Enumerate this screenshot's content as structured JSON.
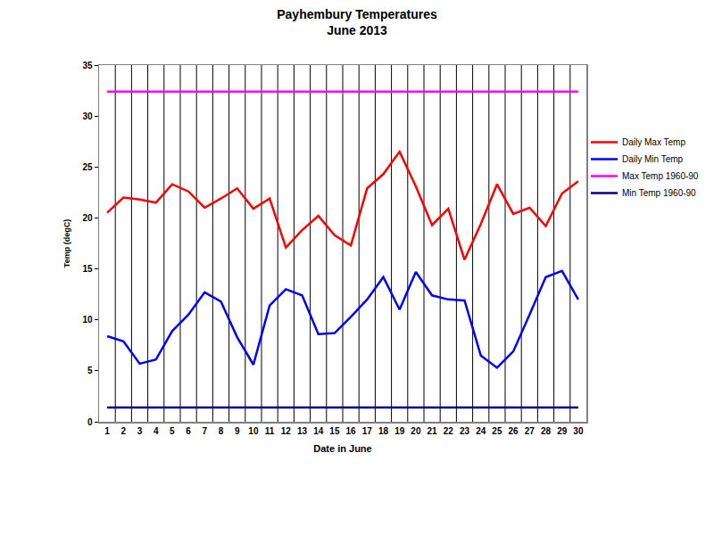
{
  "chart_data": {
    "type": "line",
    "title": "Payhembury Temperatures",
    "subtitle": "June 2013",
    "x_label": "Date in June",
    "y_label": "Temp (degC)",
    "categories": [
      "1",
      "2",
      "3",
      "4",
      "5",
      "6",
      "7",
      "8",
      "9",
      "10",
      "11",
      "12",
      "13",
      "14",
      "15",
      "16",
      "17",
      "18",
      "19",
      "20",
      "21",
      "22",
      "23",
      "24",
      "25",
      "26",
      "27",
      "28",
      "29",
      "30"
    ],
    "series": [
      {
        "name": "Daily Max Temp",
        "color": "#ff0000",
        "values": [
          20.5,
          22.0,
          21.8,
          21.5,
          23.3,
          22.6,
          21.0,
          21.9,
          22.9,
          20.9,
          21.9,
          17.1,
          18.8,
          20.2,
          18.3,
          17.3,
          22.9,
          24.3,
          26.5,
          23.1,
          19.3,
          20.9,
          15.9,
          19.4,
          23.3,
          20.4,
          21.0,
          19.2,
          22.4,
          23.6
        ]
      },
      {
        "name": "Daily Min Temp",
        "color": "#0000ff",
        "values": [
          8.4,
          7.9,
          5.7,
          6.1,
          8.9,
          10.5,
          12.7,
          11.8,
          8.3,
          5.6,
          11.4,
          13.0,
          12.4,
          8.6,
          8.7,
          10.3,
          12.0,
          14.2,
          11.0,
          14.7,
          12.4,
          12.0,
          11.9,
          6.5,
          5.3,
          6.9,
          10.5,
          14.2,
          14.8,
          12.0
        ]
      },
      {
        "name": "Max Temp 1960-90",
        "color": "#ff00ff",
        "values": [
          32.4,
          32.4,
          32.4,
          32.4,
          32.4,
          32.4,
          32.4,
          32.4,
          32.4,
          32.4,
          32.4,
          32.4,
          32.4,
          32.4,
          32.4,
          32.4,
          32.4,
          32.4,
          32.4,
          32.4,
          32.4,
          32.4,
          32.4,
          32.4,
          32.4,
          32.4,
          32.4,
          32.4,
          32.4,
          32.4
        ]
      },
      {
        "name": "Min Temp 1960-90",
        "color": "#000080",
        "values": [
          1.4,
          1.4,
          1.4,
          1.4,
          1.4,
          1.4,
          1.4,
          1.4,
          1.4,
          1.4,
          1.4,
          1.4,
          1.4,
          1.4,
          1.4,
          1.4,
          1.4,
          1.4,
          1.4,
          1.4,
          1.4,
          1.4,
          1.4,
          1.4,
          1.4,
          1.4,
          1.4,
          1.4,
          1.4,
          1.4
        ]
      }
    ],
    "ylim": [
      0,
      35
    ],
    "yticks": [
      0,
      5,
      10,
      15,
      20,
      25,
      30,
      35
    ],
    "grid": true,
    "legend": "right"
  }
}
